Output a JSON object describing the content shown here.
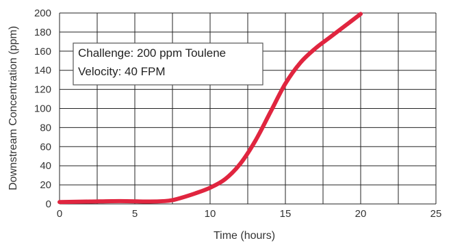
{
  "chart_data": {
    "type": "line",
    "title": "",
    "xlabel": "Time (hours)",
    "ylabel": "Downstream Concentration (ppm)",
    "xlim": [
      0,
      25
    ],
    "ylim": [
      0,
      200
    ],
    "x_ticks": [
      0,
      5,
      10,
      15,
      20,
      25
    ],
    "y_ticks": [
      0,
      20,
      40,
      60,
      80,
      100,
      120,
      140,
      160,
      180,
      200
    ],
    "grid": true,
    "annotations": [
      "Challenge: 200 ppm Toulene",
      "Velocity: 40 FPM"
    ],
    "series": [
      {
        "color": "#e0253f",
        "x": [
          0,
          2,
          4,
          6,
          7,
          7.5,
          8,
          9,
          10,
          11,
          12,
          13,
          14,
          15,
          16,
          17,
          18,
          19,
          20
        ],
        "y": [
          2,
          2.5,
          3,
          2.5,
          3,
          4,
          6,
          11,
          17,
          26,
          42,
          66,
          96,
          126,
          148,
          163,
          175,
          187,
          199
        ]
      }
    ]
  }
}
